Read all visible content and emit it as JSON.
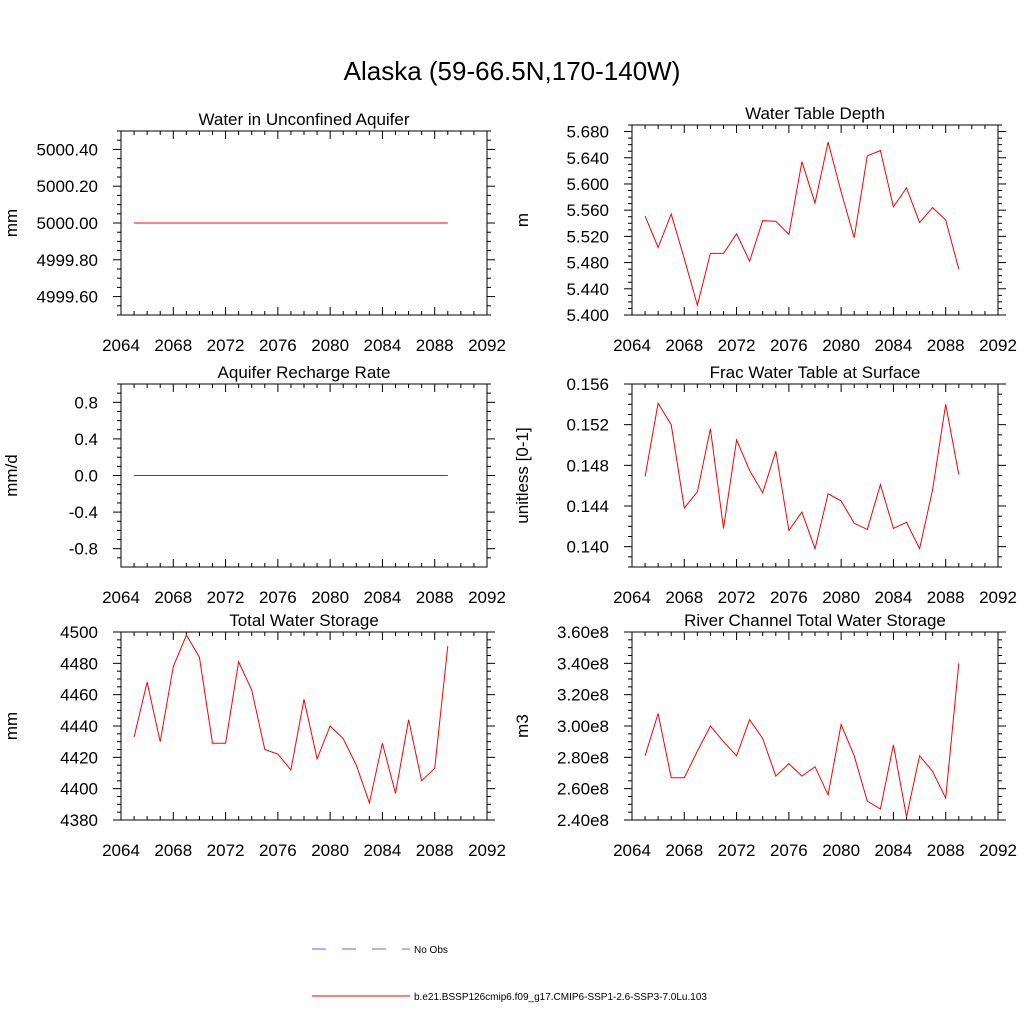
{
  "figure": {
    "title": "Alaska (59-66.5N,170-140W)",
    "series_color": "#ff0000",
    "obs_color": "#6a6acd"
  },
  "legend": {
    "obs_label": "No Obs",
    "model_label": "b.e21.BSSP126cmip6.f09_g17.CMIP6-SSP1-2.6-SSP3-7.0Lu.103"
  },
  "chart_data": [
    {
      "type": "line",
      "title": "Water in Unconfined Aquifer",
      "ylabel": "mm",
      "xlim": [
        2064,
        2092
      ],
      "ylim": [
        4999.5,
        5000.5
      ],
      "xticks": [
        2064,
        2068,
        2072,
        2076,
        2080,
        2084,
        2088,
        2092
      ],
      "xtick_labels": [
        "2064",
        "2068",
        "2072",
        "2076",
        "2080",
        "2084",
        "2088",
        "2092"
      ],
      "yticks": [
        4999.6,
        4999.8,
        5000.0,
        5000.2,
        5000.4
      ],
      "ytick_labels": [
        "4999.60",
        "4999.80",
        "5000.00",
        "5000.20",
        "5000.40"
      ],
      "x": [
        2065,
        2066,
        2067,
        2068,
        2069,
        2070,
        2071,
        2072,
        2073,
        2074,
        2075,
        2076,
        2077,
        2078,
        2079,
        2080,
        2081,
        2082,
        2083,
        2084,
        2085,
        2086,
        2087,
        2088,
        2089
      ],
      "y": [
        5000,
        5000,
        5000,
        5000,
        5000,
        5000,
        5000,
        5000,
        5000,
        5000,
        5000,
        5000,
        5000,
        5000,
        5000,
        5000,
        5000,
        5000,
        5000,
        5000,
        5000,
        5000,
        5000,
        5000,
        5000
      ]
    },
    {
      "type": "line",
      "title": "Water Table Depth",
      "ylabel": "m",
      "xlim": [
        2064,
        2092
      ],
      "ylim": [
        5.4,
        5.69
      ],
      "xticks": [
        2064,
        2068,
        2072,
        2076,
        2080,
        2084,
        2088,
        2092
      ],
      "xtick_labels": [
        "2064",
        "2068",
        "2072",
        "2076",
        "2080",
        "2084",
        "2088",
        "2092"
      ],
      "yticks": [
        5.4,
        5.44,
        5.48,
        5.52,
        5.56,
        5.6,
        5.64,
        5.68
      ],
      "ytick_labels": [
        "5.400",
        "5.440",
        "5.480",
        "5.520",
        "5.560",
        "5.600",
        "5.640",
        "5.680"
      ],
      "x": [
        2065,
        2066,
        2067,
        2068,
        2069,
        2070,
        2071,
        2072,
        2073,
        2074,
        2075,
        2076,
        2077,
        2078,
        2079,
        2080,
        2081,
        2082,
        2083,
        2084,
        2085,
        2086,
        2087,
        2088,
        2089
      ],
      "y": [
        5.551,
        5.503,
        5.554,
        5.486,
        5.415,
        5.494,
        5.494,
        5.524,
        5.482,
        5.544,
        5.543,
        5.523,
        5.634,
        5.571,
        5.664,
        5.588,
        5.518,
        5.643,
        5.651,
        5.565,
        5.594,
        5.541,
        5.564,
        5.545,
        5.47
      ]
    },
    {
      "type": "line",
      "title": "Aquifer Recharge Rate",
      "ylabel": "mm/d",
      "xlim": [
        2064,
        2092
      ],
      "ylim": [
        -1.0,
        1.0
      ],
      "xticks": [
        2064,
        2068,
        2072,
        2076,
        2080,
        2084,
        2088,
        2092
      ],
      "xtick_labels": [
        "2064",
        "2068",
        "2072",
        "2076",
        "2080",
        "2084",
        "2088",
        "2092"
      ],
      "yticks": [
        -0.8,
        -0.4,
        0.0,
        0.4,
        0.8
      ],
      "ytick_labels": [
        "-0.8",
        "-0.4",
        "0.0",
        "0.4",
        "0.8"
      ],
      "x": [
        2065,
        2066,
        2067,
        2068,
        2069,
        2070,
        2071,
        2072,
        2073,
        2074,
        2075,
        2076,
        2077,
        2078,
        2079,
        2080,
        2081,
        2082,
        2083,
        2084,
        2085,
        2086,
        2087,
        2088,
        2089
      ],
      "y": [
        0,
        0,
        0,
        0,
        0,
        0,
        0,
        0,
        0,
        0,
        0,
        0,
        0,
        0,
        0,
        0,
        0,
        0,
        0,
        0,
        0,
        0,
        0,
        0,
        0
      ]
    },
    {
      "type": "line",
      "title": "Frac Water Table at Surface",
      "ylabel": "unitless [0-1]",
      "xlim": [
        2064,
        2092
      ],
      "ylim": [
        0.138,
        0.156
      ],
      "xticks": [
        2064,
        2068,
        2072,
        2076,
        2080,
        2084,
        2088,
        2092
      ],
      "xtick_labels": [
        "2064",
        "2068",
        "2072",
        "2076",
        "2080",
        "2084",
        "2088",
        "2092"
      ],
      "yticks": [
        0.14,
        0.144,
        0.148,
        0.152,
        0.156
      ],
      "ytick_labels": [
        "0.140",
        "0.144",
        "0.148",
        "0.152",
        "0.156"
      ],
      "x": [
        2065,
        2066,
        2067,
        2068,
        2069,
        2070,
        2071,
        2072,
        2073,
        2074,
        2075,
        2076,
        2077,
        2078,
        2079,
        2080,
        2081,
        2082,
        2083,
        2084,
        2085,
        2086,
        2087,
        2088,
        2089
      ],
      "y": [
        0.1469,
        0.1541,
        0.152,
        0.1438,
        0.1454,
        0.1516,
        0.1418,
        0.1505,
        0.1475,
        0.1453,
        0.1494,
        0.1416,
        0.1434,
        0.1398,
        0.1452,
        0.1445,
        0.1423,
        0.1417,
        0.1461,
        0.1418,
        0.1424,
        0.1398,
        0.1456,
        0.154,
        0.1471
      ]
    },
    {
      "type": "line",
      "title": "Total Water Storage",
      "ylabel": "mm",
      "xlim": [
        2064,
        2092
      ],
      "ylim": [
        4380,
        4500
      ],
      "xticks": [
        2064,
        2068,
        2072,
        2076,
        2080,
        2084,
        2088,
        2092
      ],
      "xtick_labels": [
        "2064",
        "2068",
        "2072",
        "2076",
        "2080",
        "2084",
        "2088",
        "2092"
      ],
      "yticks": [
        4380,
        4400,
        4420,
        4440,
        4460,
        4480,
        4500
      ],
      "ytick_labels": [
        "4380",
        "4400",
        "4420",
        "4440",
        "4460",
        "4480",
        "4500"
      ],
      "x": [
        2065,
        2066,
        2067,
        2068,
        2069,
        2070,
        2071,
        2072,
        2073,
        2074,
        2075,
        2076,
        2077,
        2078,
        2079,
        2080,
        2081,
        2082,
        2083,
        2084,
        2085,
        2086,
        2087,
        2088,
        2089
      ],
      "y": [
        4433,
        4468,
        4430,
        4478,
        4498,
        4484,
        4429,
        4429,
        4481,
        4463,
        4425,
        4422,
        4412,
        4457,
        4419,
        4440,
        4432,
        4415,
        4391,
        4429,
        4397,
        4444,
        4405,
        4413,
        4491
      ]
    },
    {
      "type": "line",
      "title": "River Channel Total Water Storage",
      "ylabel": "m3",
      "xlim": [
        2064,
        2092
      ],
      "ylim": [
        240000000,
        360000000
      ],
      "xticks": [
        2064,
        2068,
        2072,
        2076,
        2080,
        2084,
        2088,
        2092
      ],
      "xtick_labels": [
        "2064",
        "2068",
        "2072",
        "2076",
        "2080",
        "2084",
        "2088",
        "2092"
      ],
      "yticks": [
        240000000,
        260000000,
        280000000,
        300000000,
        320000000,
        340000000,
        360000000
      ],
      "ytick_labels": [
        "2.40e8",
        "2.60e8",
        "2.80e8",
        "3.00e8",
        "3.20e8",
        "3.40e8",
        "3.60e8"
      ],
      "x": [
        2065,
        2066,
        2067,
        2068,
        2069,
        2070,
        2071,
        2072,
        2073,
        2074,
        2075,
        2076,
        2077,
        2078,
        2079,
        2080,
        2081,
        2082,
        2083,
        2084,
        2085,
        2086,
        2087,
        2088,
        2089
      ],
      "y": [
        281000000,
        308000000,
        267000000,
        267000000,
        284000000,
        300000000,
        290000000,
        281000000,
        304000000,
        292000000,
        268000000,
        276000000,
        268000000,
        274000000,
        256000000,
        301000000,
        281000000,
        252000000,
        247000000,
        288000000,
        242000000,
        281000000,
        271000000,
        254000000,
        340000000
      ]
    }
  ]
}
